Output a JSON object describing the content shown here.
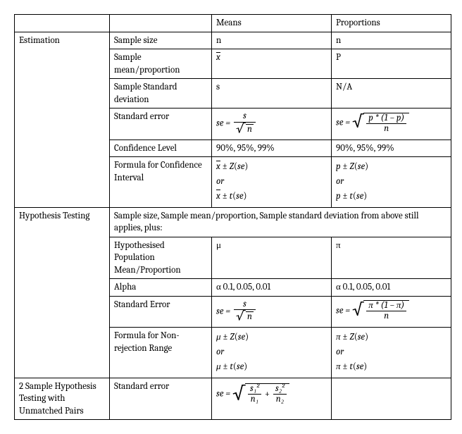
{
  "table": {
    "background_color": "#ffffff",
    "border_color": "#000000",
    "font_family": "Cambria, Georgia, serif",
    "font_size_pt": 10,
    "headers": {
      "c3": "Means",
      "c4": "Proportions"
    },
    "sections": {
      "estimation": {
        "label": "Estimation",
        "rows": {
          "sample_size": {
            "label": "Sample size",
            "means": "n",
            "props": "n"
          },
          "sample_stat": {
            "label": "Sample mean/proportion",
            "means_is_xbar": true,
            "props": "P"
          },
          "sample_sd": {
            "label": "Sample Standard deviation",
            "means": "s",
            "props": "N/A"
          },
          "se": {
            "label": "Standard error"
          },
          "conf_level": {
            "label": "Confidence Level",
            "means": "90%, 95%, 99%",
            "props": "90%, 95%, 99%"
          },
          "ci": {
            "label": "Formula for Confidence Interval",
            "or": "or"
          }
        }
      },
      "hypothesis": {
        "label": "Hypothesis Testing",
        "note": "Sample size, Sample mean/proportion, Sample standard deviation from above still applies, plus:",
        "rows": {
          "hyp_param": {
            "label": "Hypothesised Population Mean/Proportion",
            "means": "μ",
            "props": "π"
          },
          "alpha": {
            "label": "Alpha",
            "means": "α 0.1, 0.05, 0.01",
            "props": "α 0.1, 0.05, 0.01"
          },
          "se": {
            "label": "Standard Error"
          },
          "nrr": {
            "label": "Formula for Non-rejection Range",
            "or": "or"
          }
        }
      },
      "two_sample": {
        "label": "2 Sample Hypothesis Testing with Unmatched Pairs",
        "rows": {
          "se": {
            "label": "Standard error"
          }
        }
      }
    },
    "formulas": {
      "se_mean": {
        "prefix": "se =",
        "num": "s",
        "den_sqrt": "n"
      },
      "se_prop": {
        "prefix": "se =",
        "sqrt_frac_num": "p * (1 − p)",
        "sqrt_frac_den": "n"
      },
      "se_prop_pi": {
        "prefix": "se =",
        "sqrt_frac_num": "π * (1 − π)",
        "sqrt_frac_den": "n"
      },
      "ci_mean_z": "x̄ ± Z(se)",
      "ci_mean_t": "x̄ ± t(se)",
      "ci_prop_z": "p ± Z(se)",
      "ci_prop_t": "p ± t(se)",
      "nrr_mean_z": "μ ± Z(se)",
      "nrr_mean_t": "μ ± t(se)",
      "nrr_prop_z": "π ± Z(se)",
      "nrr_prop_t": "π ± t(se)",
      "se_two": {
        "prefix": "se =",
        "t1_num": "s₁²",
        "t1_den": "n₁",
        "t2_num": "s₂²",
        "t2_den": "n₂"
      }
    }
  }
}
